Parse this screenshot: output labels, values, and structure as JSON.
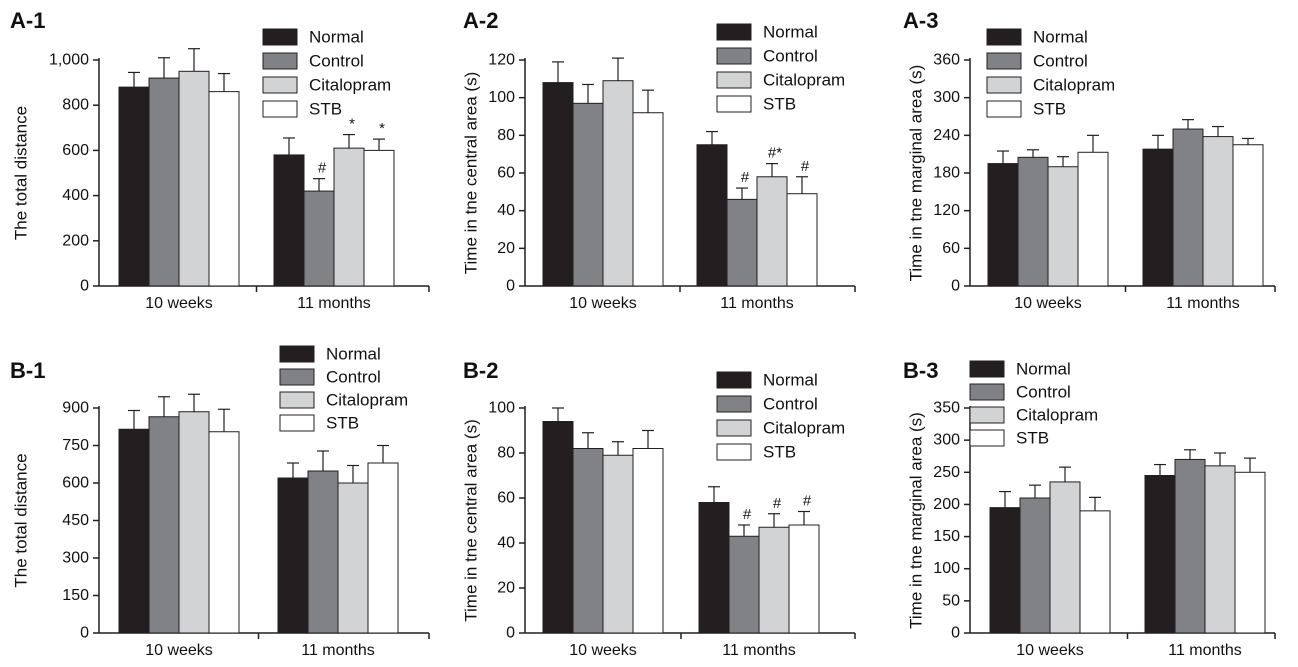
{
  "figure": {
    "colors": {
      "Normal": "#231f20",
      "Control": "#808285",
      "Citalopram": "#d1d3d4",
      "STB": "#ffffff",
      "axis": "#231f20"
    },
    "groups": [
      "10 weeks",
      "11 months"
    ],
    "series_names": [
      "Normal",
      "Control",
      "Citalopram",
      "STB"
    ]
  },
  "chart_data": [
    {
      "id": "A-1",
      "panel_label": "A-1",
      "type": "bar",
      "ylabel": "The total distance",
      "categories": [
        "10 weeks",
        "11 months"
      ],
      "ylim": [
        0,
        1000
      ],
      "ticks": [
        0,
        200,
        400,
        600,
        800,
        1000
      ],
      "tick_labels": [
        "0",
        "200",
        "400",
        "600",
        "800",
        "1,000"
      ],
      "legend": "top-right",
      "series": [
        {
          "name": "Normal",
          "values": [
            880,
            580
          ],
          "errors": [
            65,
            75
          ],
          "marks": [
            "",
            ""
          ]
        },
        {
          "name": "Control",
          "values": [
            920,
            420
          ],
          "errors": [
            90,
            55
          ],
          "marks": [
            "",
            "#"
          ]
        },
        {
          "name": "Citalopram",
          "values": [
            950,
            610
          ],
          "errors": [
            100,
            60
          ],
          "marks": [
            "",
            "*"
          ]
        },
        {
          "name": "STB",
          "values": [
            860,
            600
          ],
          "errors": [
            80,
            50
          ],
          "marks": [
            "",
            "*"
          ]
        }
      ]
    },
    {
      "id": "A-2",
      "panel_label": "A-2",
      "type": "bar",
      "ylabel": "Time in tne central area (s)",
      "categories": [
        "10 weeks",
        "11 months"
      ],
      "ylim": [
        0,
        120
      ],
      "ticks": [
        0,
        20,
        40,
        60,
        80,
        100,
        120
      ],
      "tick_labels": [
        "0",
        "20",
        "40",
        "60",
        "80",
        "100",
        "120"
      ],
      "legend": "top-right",
      "series": [
        {
          "name": "Normal",
          "values": [
            108,
            75
          ],
          "errors": [
            11,
            7
          ],
          "marks": [
            "",
            ""
          ]
        },
        {
          "name": "Control",
          "values": [
            97,
            46
          ],
          "errors": [
            10,
            6
          ],
          "marks": [
            "",
            "#"
          ]
        },
        {
          "name": "Citalopram",
          "values": [
            109,
            58
          ],
          "errors": [
            12,
            7
          ],
          "marks": [
            "",
            "#*"
          ]
        },
        {
          "name": "STB",
          "values": [
            92,
            49
          ],
          "errors": [
            12,
            9
          ],
          "marks": [
            "",
            "#"
          ]
        }
      ]
    },
    {
      "id": "A-3",
      "panel_label": "A-3",
      "type": "bar",
      "ylabel": "Time in tne marginal area (s)",
      "categories": [
        "10 weeks",
        "11 months"
      ],
      "ylim": [
        0,
        360
      ],
      "ticks": [
        0,
        60,
        120,
        180,
        240,
        300,
        360
      ],
      "tick_labels": [
        "0",
        "60",
        "120",
        "180",
        "240",
        "300",
        "360"
      ],
      "legend": "top-right",
      "series": [
        {
          "name": "Normal",
          "values": [
            195,
            218
          ],
          "errors": [
            20,
            22
          ],
          "marks": [
            "",
            ""
          ]
        },
        {
          "name": "Control",
          "values": [
            205,
            250
          ],
          "errors": [
            12,
            15
          ],
          "marks": [
            "",
            ""
          ]
        },
        {
          "name": "Citalopram",
          "values": [
            190,
            238
          ],
          "errors": [
            16,
            16
          ],
          "marks": [
            "",
            ""
          ]
        },
        {
          "name": "STB",
          "values": [
            213,
            225
          ],
          "errors": [
            27,
            10
          ],
          "marks": [
            "",
            ""
          ]
        }
      ]
    },
    {
      "id": "B-1",
      "panel_label": "B-1",
      "type": "bar",
      "ylabel": "The total distance",
      "categories": [
        "10 weeks",
        "11 months"
      ],
      "ylim": [
        0,
        900
      ],
      "ticks": [
        0,
        150,
        300,
        450,
        600,
        750,
        900
      ],
      "tick_labels": [
        "0",
        "150",
        "300",
        "450",
        "600",
        "750",
        "900"
      ],
      "legend": "top-right",
      "series": [
        {
          "name": "Normal",
          "values": [
            815,
            620
          ],
          "errors": [
            75,
            60
          ],
          "marks": [
            "",
            ""
          ]
        },
        {
          "name": "Control",
          "values": [
            865,
            648
          ],
          "errors": [
            80,
            80
          ],
          "marks": [
            "",
            ""
          ]
        },
        {
          "name": "Citalopram",
          "values": [
            885,
            600
          ],
          "errors": [
            70,
            70
          ],
          "marks": [
            "",
            ""
          ]
        },
        {
          "name": "STB",
          "values": [
            805,
            680
          ],
          "errors": [
            90,
            70
          ],
          "marks": [
            "",
            ""
          ]
        }
      ]
    },
    {
      "id": "B-2",
      "panel_label": "B-2",
      "type": "bar",
      "ylabel": "Time in tne central area (s)",
      "categories": [
        "10 weeks",
        "11 months"
      ],
      "ylim": [
        0,
        100
      ],
      "ticks": [
        0,
        20,
        40,
        60,
        80,
        100
      ],
      "tick_labels": [
        "0",
        "20",
        "40",
        "60",
        "80",
        "100"
      ],
      "legend": "top-right",
      "series": [
        {
          "name": "Normal",
          "values": [
            94,
            58
          ],
          "errors": [
            6,
            7
          ],
          "marks": [
            "",
            ""
          ]
        },
        {
          "name": "Control",
          "values": [
            82,
            43
          ],
          "errors": [
            7,
            5
          ],
          "marks": [
            "",
            "#"
          ]
        },
        {
          "name": "Citalopram",
          "values": [
            79,
            47
          ],
          "errors": [
            6,
            6
          ],
          "marks": [
            "",
            "#"
          ]
        },
        {
          "name": "STB",
          "values": [
            82,
            48
          ],
          "errors": [
            8,
            6
          ],
          "marks": [
            "",
            "#"
          ]
        }
      ]
    },
    {
      "id": "B-3",
      "panel_label": "B-3",
      "type": "bar",
      "ylabel": "Time in tne marginal area (s)",
      "categories": [
        "10 weeks",
        "11 months"
      ],
      "ylim": [
        0,
        350
      ],
      "ticks": [
        0,
        50,
        100,
        150,
        200,
        250,
        300,
        350
      ],
      "tick_labels": [
        "0",
        "50",
        "100",
        "150",
        "200",
        "250",
        "300",
        "350"
      ],
      "legend": "top-right",
      "series": [
        {
          "name": "Normal",
          "values": [
            195,
            245
          ],
          "errors": [
            25,
            17
          ],
          "marks": [
            "",
            ""
          ]
        },
        {
          "name": "Control",
          "values": [
            210,
            270
          ],
          "errors": [
            20,
            15
          ],
          "marks": [
            "",
            ""
          ]
        },
        {
          "name": "Citalopram",
          "values": [
            235,
            260
          ],
          "errors": [
            23,
            20
          ],
          "marks": [
            "",
            ""
          ]
        },
        {
          "name": "STB",
          "values": [
            190,
            250
          ],
          "errors": [
            21,
            22
          ],
          "marks": [
            "",
            ""
          ]
        }
      ]
    }
  ]
}
